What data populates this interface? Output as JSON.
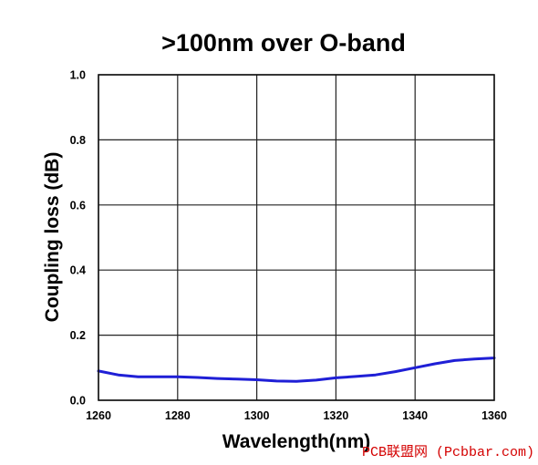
{
  "chart_data": {
    "type": "line",
    "title": ">100nm over O-band",
    "xlabel": "Wavelength(nm)",
    "ylabel": "Coupling loss (dB)",
    "xlim": [
      1260,
      1360
    ],
    "ylim": [
      0.0,
      1.0
    ],
    "xticks": [
      "1260",
      "1280",
      "1300",
      "1320",
      "1340",
      "1360"
    ],
    "yticks": [
      "0.0",
      "0.2",
      "0.4",
      "0.6",
      "0.8",
      "1.0"
    ],
    "grid": true,
    "colors": {
      "series": "#1f1fd6"
    },
    "series": [
      {
        "x": [
          1260,
          1265,
          1270,
          1275,
          1280,
          1285,
          1290,
          1295,
          1300,
          1305,
          1310,
          1315,
          1320,
          1325,
          1330,
          1335,
          1340,
          1345,
          1350,
          1355,
          1360
        ],
        "y": [
          0.09,
          0.078,
          0.072,
          0.072,
          0.072,
          0.07,
          0.067,
          0.065,
          0.063,
          0.059,
          0.058,
          0.062,
          0.069,
          0.073,
          0.078,
          0.088,
          0.1,
          0.112,
          0.122,
          0.127,
          0.13
        ]
      }
    ]
  },
  "watermark": "PCB联盟网 (Pcbbar.com)"
}
